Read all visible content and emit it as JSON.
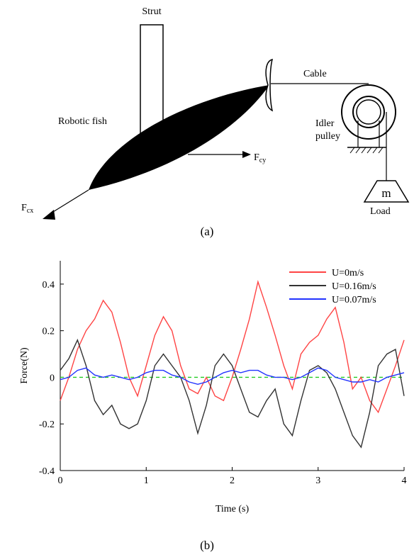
{
  "diagram": {
    "strut": "Strut",
    "cable": "Cable",
    "fish": "Robotic fish",
    "pulley": [
      "Idler",
      "pulley"
    ],
    "mass": "m",
    "load": "Load",
    "force_cy": {
      "symbol": "F",
      "subscript": "cy"
    },
    "force_cx": {
      "symbol": "F",
      "subscript": "cx"
    },
    "caption": "(a)"
  },
  "caption_b": "(b)",
  "chart_data": {
    "type": "line",
    "xlabel": "Time (s)",
    "ylabel": "Force(N)",
    "xlim": [
      0,
      4
    ],
    "ylim": [
      -0.4,
      0.5
    ],
    "xticks": [
      0,
      1,
      2,
      3,
      4
    ],
    "yticks": [
      -0.4,
      -0.2,
      0,
      0.2,
      0.4
    ],
    "zero_line_color": "#22cc22",
    "legend": "upper right",
    "x": [
      0,
      0.1,
      0.2,
      0.3,
      0.4,
      0.5,
      0.6,
      0.7,
      0.8,
      0.9,
      1,
      1.1,
      1.2,
      1.3,
      1.4,
      1.5,
      1.6,
      1.7,
      1.8,
      1.9,
      2,
      2.1,
      2.2,
      2.3,
      2.4,
      2.5,
      2.6,
      2.7,
      2.8,
      2.9,
      3,
      3.1,
      3.2,
      3.3,
      3.4,
      3.5,
      3.6,
      3.7,
      3.8,
      3.9,
      4
    ],
    "series": [
      {
        "name": "U=0m/s",
        "color": "#ff4444",
        "values": [
          -0.1,
          0.0,
          0.12,
          0.2,
          0.25,
          0.33,
          0.28,
          0.15,
          0.0,
          -0.08,
          0.05,
          0.18,
          0.26,
          0.2,
          0.05,
          -0.05,
          -0.07,
          0.0,
          -0.08,
          -0.1,
          0.0,
          0.12,
          0.25,
          0.41,
          0.3,
          0.18,
          0.05,
          -0.05,
          0.1,
          0.15,
          0.18,
          0.25,
          0.3,
          0.15,
          -0.05,
          0.0,
          -0.1,
          -0.15,
          -0.05,
          0.05,
          0.16
        ]
      },
      {
        "name": "U=0.16m/s",
        "color": "#333333",
        "values": [
          0.03,
          0.08,
          0.16,
          0.05,
          -0.1,
          -0.16,
          -0.12,
          -0.2,
          -0.22,
          -0.2,
          -0.1,
          0.05,
          0.1,
          0.05,
          0.0,
          -0.1,
          -0.24,
          -0.12,
          0.05,
          0.1,
          0.05,
          -0.05,
          -0.15,
          -0.17,
          -0.1,
          -0.05,
          -0.2,
          -0.25,
          -0.1,
          0.03,
          0.05,
          0.02,
          -0.05,
          -0.15,
          -0.25,
          -0.3,
          -0.15,
          0.05,
          0.1,
          0.12,
          -0.08
        ]
      },
      {
        "name": "U=0.07m/s",
        "color": "#2233ff",
        "values": [
          -0.01,
          0.0,
          0.03,
          0.04,
          0.01,
          0.0,
          0.01,
          0.0,
          -0.01,
          0.0,
          0.02,
          0.03,
          0.03,
          0.01,
          0.0,
          -0.02,
          -0.03,
          -0.02,
          0.0,
          0.02,
          0.03,
          0.02,
          0.03,
          0.03,
          0.01,
          0.0,
          0.0,
          -0.01,
          0.0,
          0.02,
          0.04,
          0.03,
          0.0,
          -0.01,
          -0.02,
          -0.02,
          -0.01,
          -0.02,
          0.0,
          0.01,
          0.02
        ]
      }
    ]
  }
}
